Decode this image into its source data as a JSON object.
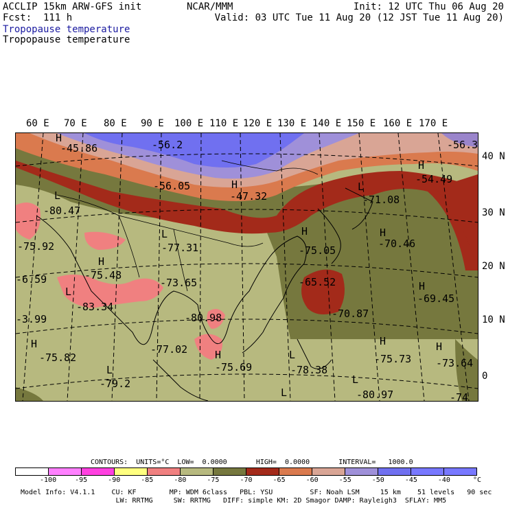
{
  "header": {
    "left_line1": "ACCLIP 15km ARW-GFS init",
    "left_line2": "Fcst:  111 h",
    "center_line1": "NCAR/MMM",
    "right_line1": "Init: 12 UTC Thu 06 Aug 20",
    "right_line2": "Valid: 03 UTC Tue 11 Aug 20 (12 JST Tue 11 Aug 20)",
    "field_line1": "Tropopause temperature",
    "field_line2": "Tropopause temperature"
  },
  "map": {
    "longitude_labels": [
      "60 E",
      "70 E",
      "80 E",
      "90 E",
      "100 E",
      "110 E",
      "120 E",
      "130 E",
      "140 E",
      "150 E",
      "160 E",
      "170 E"
    ],
    "latitude_labels": [
      "40 N",
      "30 N",
      "20 N",
      "10 N",
      "0"
    ],
    "colors": {
      "le_m80": "#f08080",
      "m80_m75": "#b7b97f",
      "m75_m70": "#76783e",
      "m70_m65": "#a32a1a",
      "m65_m60": "#da7a4e",
      "m60_m55": "#d9a595",
      "m55_m50": "#9f90d9",
      "m50_m45": "#7070f0"
    },
    "annotations": [
      {
        "text": "H",
        "lon_lat": "near 70E 46N"
      },
      {
        "text": "-45.86"
      },
      {
        "text": "-56.2"
      },
      {
        "text": "-56.3"
      },
      {
        "text": "-56.05"
      },
      {
        "text": "H"
      },
      {
        "text": "-47.32"
      },
      {
        "text": "H"
      },
      {
        "text": "-54.49"
      },
      {
        "text": "L"
      },
      {
        "text": "-71.08"
      },
      {
        "text": "L"
      },
      {
        "text": "-80.47"
      },
      {
        "text": "L"
      },
      {
        "text": "-77.31"
      },
      {
        "text": "H"
      },
      {
        "text": "-70.46"
      },
      {
        "text": "-75.92"
      },
      {
        "text": "H"
      },
      {
        "text": "-75.05"
      },
      {
        "text": "H"
      },
      {
        "text": "-75.48"
      },
      {
        "text": "-6.59"
      },
      {
        "text": "-73.65"
      },
      {
        "text": "-65.52"
      },
      {
        "text": "H"
      },
      {
        "text": "-69.45"
      },
      {
        "text": "L"
      },
      {
        "text": "-83.34"
      },
      {
        "text": "-80.98"
      },
      {
        "text": "-70.87"
      },
      {
        "text": "-3.99"
      },
      {
        "text": "H"
      },
      {
        "text": "-75.82"
      },
      {
        "text": "-77.02"
      },
      {
        "text": "H"
      },
      {
        "text": "-75.69"
      },
      {
        "text": "L"
      },
      {
        "text": "-78.38"
      },
      {
        "text": "H"
      },
      {
        "text": "-75.73"
      },
      {
        "text": "H"
      },
      {
        "text": "-73.64"
      },
      {
        "text": "L"
      },
      {
        "text": "-79.2"
      },
      {
        "text": "L"
      },
      {
        "text": "-80.97"
      },
      {
        "text": "L"
      },
      {
        "text": "-74"
      }
    ]
  },
  "contour_info": "CONTOURS:  UNITS=°C  LOW=  0.0000       HIGH=  0.0000       INTERVAL=   1000.0",
  "colorbar": {
    "colors": [
      "#ffffff",
      "#ff80ff",
      "#ff40e0",
      "#ffff80",
      "#f08080",
      "#b7b97f",
      "#76783e",
      "#a32a1a",
      "#da7a4e",
      "#d9a595",
      "#9f90d9",
      "#7070f0",
      "#7878ff",
      "#7878ff"
    ],
    "ticks": [
      "-100",
      "-95",
      "-90",
      "-85",
      "-80",
      "-75",
      "-70",
      "-65",
      "-60",
      "-55",
      "-50",
      "-45",
      "-40",
      "°C"
    ]
  },
  "model_info": {
    "line1": "Model Info: V4.1.1    CU: KF        MP: WDM 6class   PBL: YSU         SF: Noah LSM     15 km    51 levels   90 sec",
    "line2": "                       LW: RRTMG     SW: RRTMG   DIFF: simple KM: 2D Smagor DAMP: Rayleigh3  SFLAY: MM5"
  }
}
